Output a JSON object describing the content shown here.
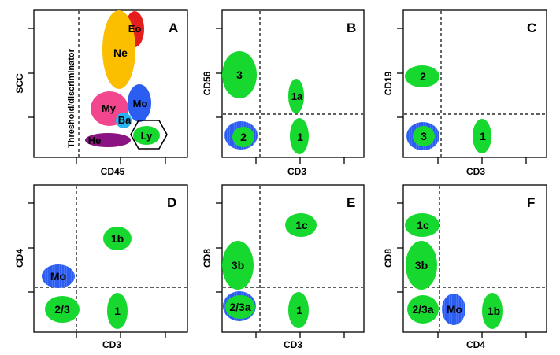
{
  "colors": {
    "green": "#16d82e",
    "blue": "#2a5df0",
    "red": "#e41d1d",
    "pink": "#f2478f",
    "orange": "#fbbf00",
    "cyan": "#25b4f0",
    "purple": "#8a1582",
    "dashed_gate": "#000000"
  },
  "panels": {
    "A": {
      "letter": "A",
      "xlabel": "CD45",
      "ylabel": "SCC",
      "threshold_label": "Threshold/discriminator",
      "populations": {
        "eo": "Eo",
        "ne": "Ne",
        "mo": "Mo",
        "my": "My",
        "ba": "Ba",
        "he": "He",
        "ly": "Ly"
      }
    },
    "B": {
      "letter": "B",
      "xlabel": "CD3",
      "ylabel": "CD56",
      "populations": {
        "p3": "3",
        "p1a": "1a",
        "p2": "2",
        "p1": "1"
      }
    },
    "C": {
      "letter": "C",
      "xlabel": "CD3",
      "ylabel": "CD19",
      "populations": {
        "p2": "2",
        "p3": "3",
        "p1": "1"
      }
    },
    "D": {
      "letter": "D",
      "xlabel": "CD3",
      "ylabel": "CD4",
      "populations": {
        "p1b": "1b",
        "mo": "Mo",
        "p23": "2/3",
        "p1": "1"
      }
    },
    "E": {
      "letter": "E",
      "xlabel": "CD3",
      "ylabel": "CD8",
      "populations": {
        "p1c": "1c",
        "p3b": "3b",
        "p23a": "2/3a",
        "p1": "1"
      }
    },
    "F": {
      "letter": "F",
      "xlabel": "CD4",
      "ylabel": "CD8",
      "populations": {
        "p1c": "1c",
        "p3b": "3b",
        "p23a": "2/3a",
        "mo": "Mo",
        "p1b": "1b"
      }
    }
  }
}
